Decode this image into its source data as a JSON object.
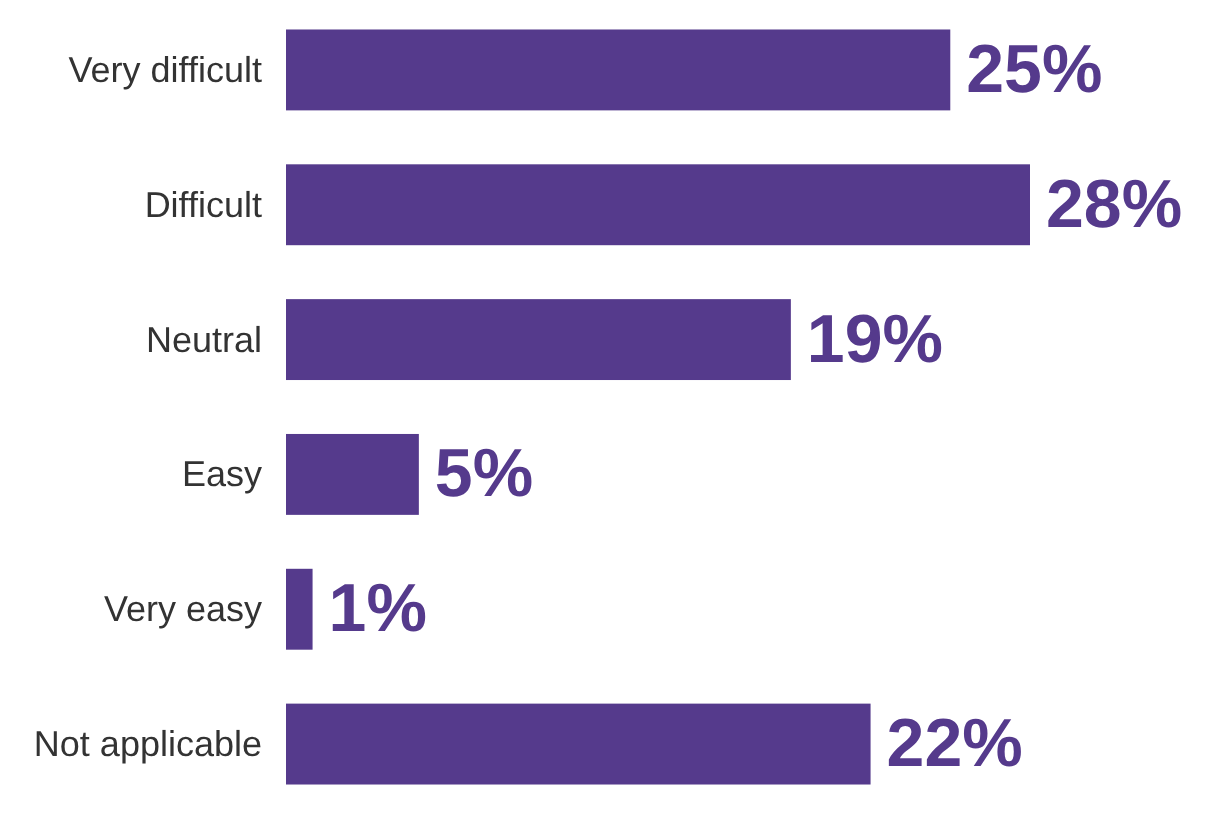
{
  "chart_data": {
    "type": "bar",
    "orientation": "horizontal",
    "categories": [
      "Very difficult",
      "Difficult",
      "Neutral",
      "Easy",
      "Very easy",
      "Not applicable"
    ],
    "values": [
      25,
      28,
      19,
      5,
      1,
      22
    ],
    "value_labels": [
      "25%",
      "28%",
      "19%",
      "5%",
      "1%",
      "22%"
    ],
    "color": "#553a8c"
  }
}
